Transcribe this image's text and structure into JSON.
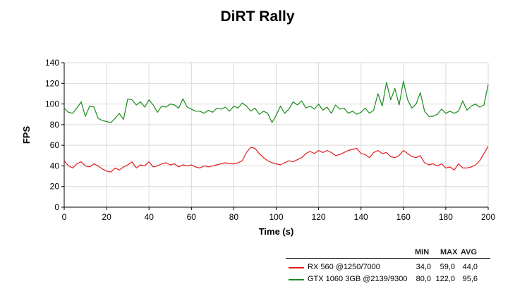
{
  "chart_data": {
    "type": "line",
    "title": "DiRT Rally",
    "xlabel": "Time (s)",
    "ylabel": "FPS",
    "xlim": [
      0,
      200
    ],
    "ylim": [
      0,
      140
    ],
    "xticks": [
      "0",
      "20",
      "40",
      "60",
      "80",
      "100",
      "120",
      "140",
      "160",
      "180",
      "200"
    ],
    "yticks": [
      "0",
      "20",
      "40",
      "60",
      "80",
      "100",
      "120",
      "140"
    ],
    "grid": true,
    "legend_position": "bottom-right",
    "stats_headers": {
      "min": "MIN",
      "max": "MAX",
      "avg": "AVG"
    },
    "series": [
      {
        "name": "RX 560 @1250/7000",
        "color": "#e31a1c",
        "min": "34,0",
        "max": "59,0",
        "avg": "44,0",
        "x": [
          0,
          2,
          4,
          6,
          8,
          10,
          12,
          14,
          16,
          18,
          20,
          22,
          24,
          26,
          28,
          30,
          32,
          34,
          36,
          38,
          40,
          42,
          44,
          46,
          48,
          50,
          52,
          54,
          56,
          58,
          60,
          62,
          64,
          66,
          68,
          70,
          72,
          74,
          76,
          78,
          80,
          82,
          84,
          86,
          88,
          90,
          92,
          94,
          96,
          98,
          100,
          102,
          104,
          106,
          108,
          110,
          112,
          114,
          116,
          118,
          120,
          122,
          124,
          126,
          128,
          130,
          132,
          134,
          136,
          138,
          140,
          142,
          144,
          146,
          148,
          150,
          152,
          154,
          156,
          158,
          160,
          162,
          164,
          166,
          168,
          170,
          172,
          174,
          176,
          178,
          180,
          182,
          184,
          186,
          188,
          190,
          192,
          194,
          196,
          198,
          200
        ],
        "y": [
          45,
          40,
          38,
          42,
          44,
          40,
          39,
          42,
          40,
          37,
          35,
          34,
          38,
          36,
          39,
          41,
          44,
          38,
          41,
          40,
          44,
          39,
          40,
          42,
          43,
          41,
          42,
          39,
          41,
          40,
          41,
          39,
          38,
          40,
          39,
          40,
          41,
          42,
          43,
          42,
          42,
          43,
          45,
          53,
          58,
          57,
          52,
          48,
          45,
          43,
          42,
          41,
          43,
          45,
          44,
          46,
          48,
          52,
          54,
          52,
          55,
          53,
          55,
          53,
          50,
          51,
          53,
          55,
          56,
          57,
          52,
          51,
          48,
          53,
          55,
          52,
          53,
          49,
          48,
          50,
          55,
          52,
          49,
          48,
          50,
          43,
          41,
          42,
          40,
          42,
          38,
          39,
          36,
          42,
          38,
          38,
          39,
          41,
          45,
          52,
          59
        ]
      },
      {
        "name": "GTX 1060 3GB @2139/9300",
        "color": "#1a8c1a",
        "min": "80,0",
        "max": "122,0",
        "avg": "95,6",
        "x": [
          0,
          2,
          4,
          6,
          8,
          10,
          12,
          14,
          16,
          18,
          20,
          22,
          24,
          26,
          28,
          30,
          32,
          34,
          36,
          38,
          40,
          42,
          44,
          46,
          48,
          50,
          52,
          54,
          56,
          58,
          60,
          62,
          64,
          66,
          68,
          70,
          72,
          74,
          76,
          78,
          80,
          82,
          84,
          86,
          88,
          90,
          92,
          94,
          96,
          98,
          100,
          102,
          104,
          106,
          108,
          110,
          112,
          114,
          116,
          118,
          120,
          122,
          124,
          126,
          128,
          130,
          132,
          134,
          136,
          138,
          140,
          142,
          144,
          146,
          148,
          150,
          152,
          154,
          156,
          158,
          160,
          162,
          164,
          166,
          168,
          170,
          172,
          174,
          176,
          178,
          180,
          182,
          184,
          186,
          188,
          190,
          192,
          194,
          196,
          198,
          200
        ],
        "y": [
          96,
          92,
          91,
          96,
          102,
          88,
          98,
          97,
          86,
          84,
          83,
          82,
          86,
          91,
          85,
          105,
          104,
          99,
          102,
          97,
          104,
          99,
          92,
          98,
          97,
          100,
          99,
          96,
          105,
          97,
          95,
          93,
          93,
          91,
          94,
          92,
          96,
          95,
          97,
          93,
          98,
          96,
          101,
          98,
          93,
          96,
          90,
          93,
          91,
          82,
          89,
          98,
          91,
          95,
          102,
          99,
          103,
          96,
          98,
          95,
          100,
          94,
          97,
          91,
          99,
          95,
          96,
          91,
          93,
          90,
          92,
          96,
          91,
          94,
          110,
          98,
          121,
          104,
          115,
          99,
          122,
          104,
          96,
          100,
          111,
          93,
          88,
          88,
          90,
          95,
          91,
          93,
          91,
          93,
          103,
          94,
          98,
          100,
          97,
          99,
          119
        ]
      }
    ]
  }
}
